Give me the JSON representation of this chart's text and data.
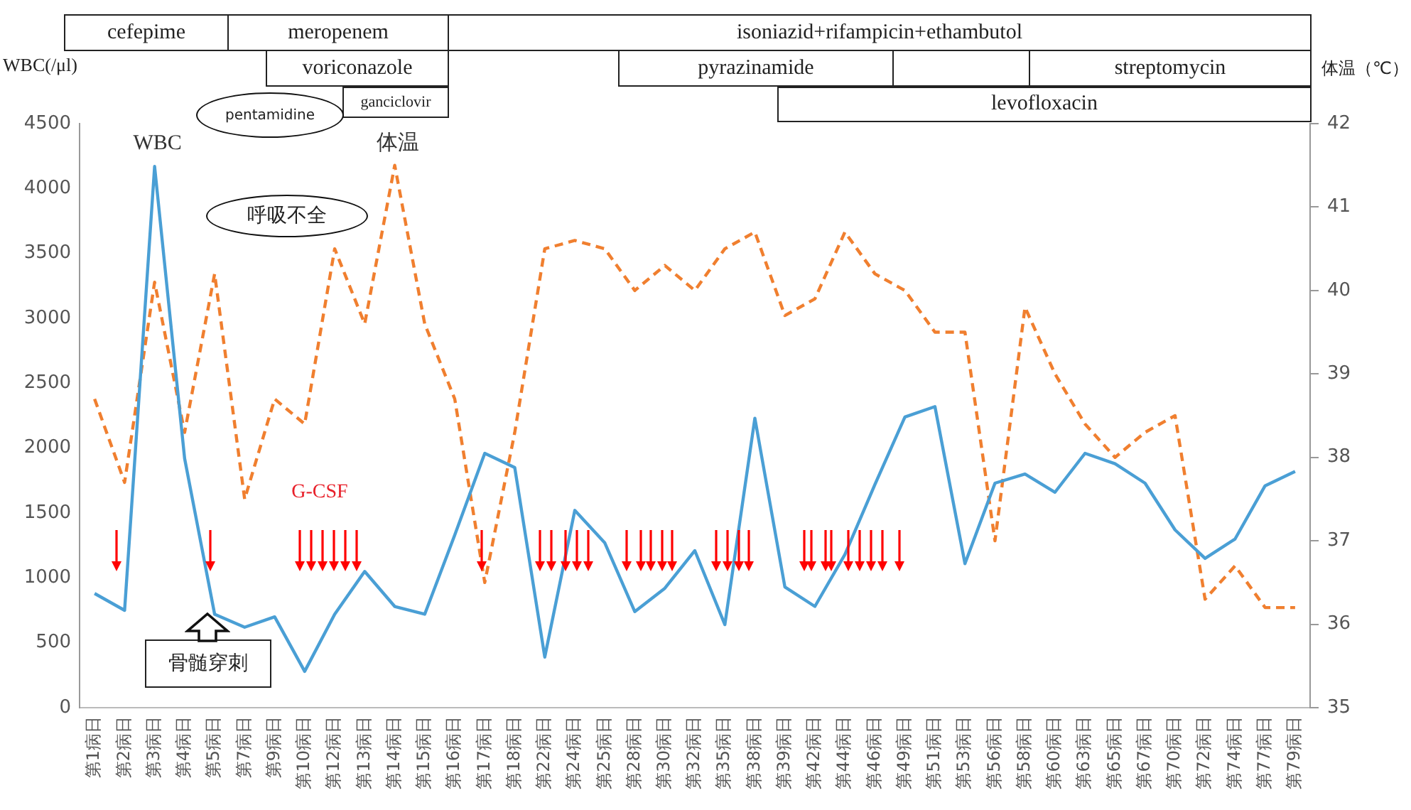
{
  "chart_data": {
    "type": "line",
    "categories": [
      "第1病日",
      "第2病日",
      "第3病日",
      "第4病日",
      "第5病日",
      "第7病日",
      "第9病日",
      "第10病日",
      "第12病日",
      "第13病日",
      "第14病日",
      "第15病日",
      "第16病日",
      "第17病日",
      "第18病日",
      "第22病日",
      "第24病日",
      "第25病日",
      "第28病日",
      "第30病日",
      "第32病日",
      "第35病日",
      "第38病日",
      "第39病日",
      "第42病日",
      "第44病日",
      "第46病日",
      "第49病日",
      "第51病日",
      "第53病日",
      "第56病日",
      "第58病日",
      "第60病日",
      "第63病日",
      "第65病日",
      "第67病日",
      "第70病日",
      "第72病日",
      "第74病日",
      "第77病日",
      "第79病日"
    ],
    "series": [
      {
        "name": "WBC",
        "color": "#4a9fd5",
        "line_style": "solid",
        "values": [
          880,
          750,
          4170,
          1920,
          720,
          620,
          700,
          280,
          720,
          1050,
          780,
          720,
          1330,
          1960,
          1850,
          390,
          1520,
          1270,
          740,
          920,
          1210,
          640,
          2230,
          930,
          780,
          1180,
          1720,
          2240,
          2320,
          1110,
          1730,
          1800,
          1660,
          1960,
          1880,
          1730,
          1370,
          1150,
          1300,
          1710,
          1820
        ]
      },
      {
        "name": "体温",
        "color": "#f07f2f",
        "line_style": "dashed",
        "axis": "y2",
        "values": [
          38.7,
          37.7,
          40.1,
          38.3,
          40.2,
          37.5,
          38.7,
          38.4,
          40.5,
          39.6,
          41.5,
          39.6,
          38.7,
          36.5,
          38.3,
          40.5,
          40.6,
          40.5,
          40.0,
          40.3,
          40.0,
          40.5,
          40.7,
          39.7,
          39.9,
          40.7,
          40.2,
          40.0,
          39.5,
          39.5,
          37.0,
          39.8,
          39.0,
          38.4,
          38.0,
          38.3,
          38.5,
          36.3,
          36.7,
          36.2,
          36.2
        ]
      }
    ],
    "ylabel": "WBC(/μl)",
    "y2label": "体温（℃）",
    "ylim": [
      0,
      4500
    ],
    "yticks": [
      0,
      500,
      1000,
      1500,
      2000,
      2500,
      3000,
      3500,
      4000,
      4500
    ],
    "y2lim": [
      35,
      42
    ],
    "y2ticks": [
      35,
      36,
      37,
      38,
      39,
      40,
      41,
      42
    ],
    "marker": "none",
    "grid": false,
    "legend": false,
    "annotations": [
      "cefepime",
      "meropenem",
      "isoniazid+rifampicin+ethambutol",
      "voriconazole",
      "pyrazinamide",
      "streptomycin",
      "ganciclovir",
      "levofloxacin",
      "pentamidine",
      "呼吸不全",
      "骨髄穿刺",
      "G-CSF"
    ]
  }
}
